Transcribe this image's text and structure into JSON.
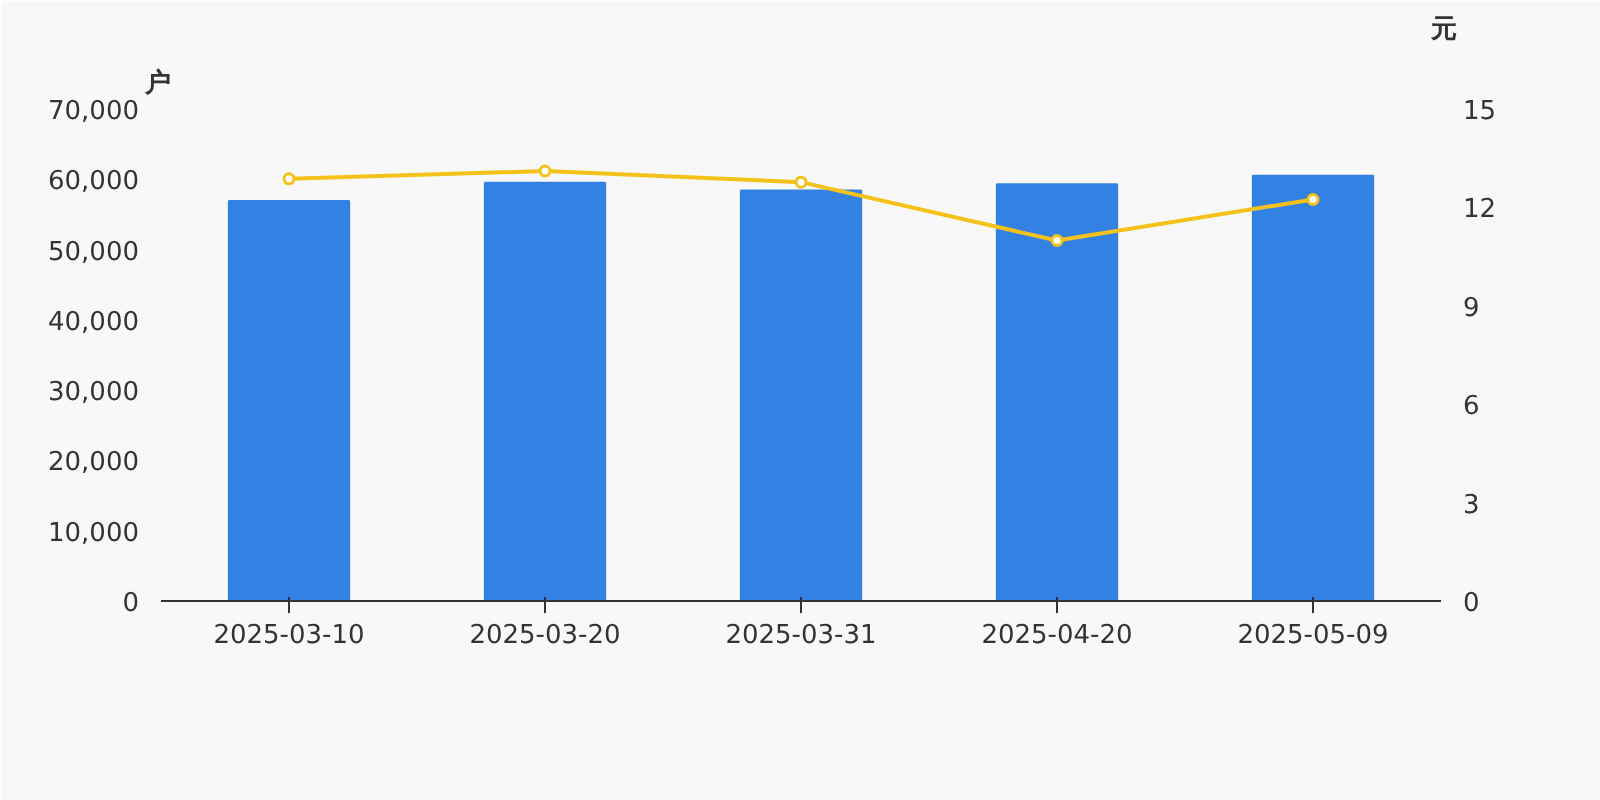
{
  "chart_data": {
    "type": "bar",
    "ylabel": "户",
    "y2label": "元",
    "categories": [
      "2025-03-10",
      "2025-03-20",
      "2025-03-31",
      "2025-04-20",
      "2025-05-09"
    ],
    "series": [
      {
        "color": "#3381e3",
        "values": [
          56900,
          59500,
          58400,
          59300,
          60500
        ]
      },
      {
        "type": "line",
        "axis": "y2",
        "color": "#f5c21b",
        "marker": "circle",
        "values": [
          12.87,
          13.11,
          12.77,
          10.99,
          12.24
        ]
      }
    ],
    "ylim": [
      0,
      70000
    ],
    "yticks": [
      {
        "value": 0,
        "label": "0"
      },
      {
        "value": 10000,
        "label": "10,000"
      },
      {
        "value": 20000,
        "label": "20,000"
      },
      {
        "value": 30000,
        "label": "30,000"
      },
      {
        "value": 40000,
        "label": "40,000"
      },
      {
        "value": 50000,
        "label": "50,000"
      },
      {
        "value": 60000,
        "label": "60,000"
      },
      {
        "value": 70000,
        "label": "70,000"
      }
    ],
    "y2lim": [
      0,
      15
    ],
    "y2ticks": [
      0,
      3,
      6,
      9,
      12,
      15
    ],
    "grid": false
  }
}
